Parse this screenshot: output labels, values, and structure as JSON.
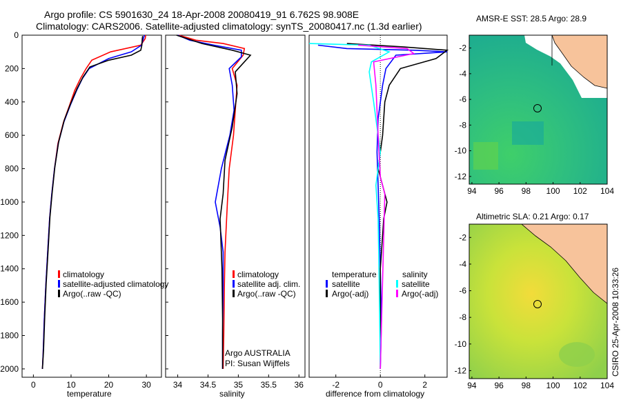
{
  "header": {
    "line1": "Argo profile: CS 5901630_24 18-Apr-2008 20080419_91 6.762S 98.908E",
    "line2": "Climatology: CARS2006. Satellite-adjusted climatology: synTS_20080417.nc (1.3d earlier)"
  },
  "colors": {
    "climatology": "#ff0000",
    "satellite": "#0000ff",
    "argo": "#000000",
    "satellite_salinity": "#00ffff",
    "argo_salinity": "#ff00ff",
    "land": "#f7c39b"
  },
  "charts": {
    "temperature": {
      "xlabel": "temperature",
      "xlim": [
        -3,
        34
      ],
      "xticks": [
        0,
        10,
        20,
        30
      ],
      "ylim": [
        2050,
        0
      ],
      "yticks": [
        0,
        200,
        400,
        600,
        800,
        1000,
        1200,
        1400,
        1600,
        1800,
        2000
      ],
      "legend": [
        "climatology",
        "satellite-adjusted climatology",
        "Argo(..raw -QC)"
      ]
    },
    "salinity": {
      "xlabel": "salinity",
      "xlim": [
        33.8,
        36.1
      ],
      "xticks": [
        "34",
        "34.5",
        "35",
        "35.5",
        "36"
      ],
      "legend": [
        "climatology",
        "satellite adj. clim.",
        "Argo(..raw -QC)"
      ],
      "credit1": "Argo AUSTRALIA",
      "credit2": "PI: Susan Wijffels"
    },
    "difference": {
      "xlabel": "difference from climatology",
      "xlim": [
        -3.2,
        3
      ],
      "xticks": [
        -2,
        0,
        2
      ],
      "legend_temperature_title": "temperature",
      "legend_salinity_title": "salinity",
      "legend_temperature": [
        "satellite",
        "Argo(-adj)"
      ],
      "legend_salinity": [
        "satellite",
        "Argo(-adj)"
      ]
    }
  },
  "maps": {
    "sst": {
      "title": "AMSR-E SST: 28.5 Argo: 28.9",
      "xticks": [
        94,
        96,
        98,
        100,
        102,
        104
      ],
      "yticks": [
        -2,
        -4,
        -6,
        -8,
        -10,
        -12
      ]
    },
    "sla": {
      "title": "Altimetric SLA: 0.21 Argo: 0.17",
      "xticks": [
        94,
        96,
        98,
        100,
        102,
        104
      ],
      "yticks": [
        -2,
        -4,
        -6,
        -8,
        -10,
        -12
      ]
    }
  },
  "side_credit": "CSIRO 25-Apr-2008 10:33:26",
  "chart_data": [
    {
      "type": "line",
      "xlabel": "temperature",
      "ylabel": "",
      "xlim": [
        -3,
        34
      ],
      "ylim": [
        2050,
        0
      ],
      "series": [
        {
          "name": "climatology",
          "x": [
            29.8,
            29.7,
            28.5,
            20.5,
            15.5,
            14.0,
            12.5,
            11.0,
            9.6,
            8.0,
            6.5,
            5.6,
            4.9,
            4.3,
            3.8,
            3.3,
            2.9,
            2.6,
            2.4
          ],
          "y": [
            0,
            20,
            60,
            100,
            150,
            200,
            260,
            330,
            420,
            520,
            650,
            800,
            950,
            1100,
            1300,
            1500,
            1700,
            1900,
            2000
          ]
        },
        {
          "name": "satellite-adjusted climatology",
          "x": [
            29.5,
            29.2,
            28.7,
            26.0,
            20.0,
            14.8,
            13.0,
            11.5,
            9.8,
            8.1,
            6.6,
            5.6,
            4.9,
            4.3,
            3.8,
            3.3,
            2.9,
            2.6,
            2.4
          ],
          "y": [
            0,
            20,
            60,
            100,
            140,
            200,
            260,
            330,
            420,
            520,
            650,
            800,
            950,
            1100,
            1300,
            1500,
            1700,
            1900,
            2000
          ]
        },
        {
          "name": "Argo(..raw -QC)",
          "x": [
            29.0,
            28.9,
            28.8,
            28.5,
            26.0,
            20.0,
            15.0,
            13.2,
            11.6,
            9.9,
            8.2,
            6.7,
            5.7,
            5.0,
            4.4,
            3.9,
            3.4,
            3.0,
            2.7,
            2.4
          ],
          "y": [
            5,
            20,
            60,
            90,
            120,
            150,
            190,
            250,
            320,
            410,
            510,
            640,
            790,
            940,
            1090,
            1290,
            1490,
            1690,
            1890,
            2000
          ]
        }
      ]
    },
    {
      "type": "line",
      "xlabel": "salinity",
      "xlim": [
        33.8,
        36.1
      ],
      "ylim": [
        2050,
        0
      ],
      "series": [
        {
          "name": "climatology",
          "x": [
            34.02,
            34.3,
            34.75,
            35.1,
            35.08,
            34.9,
            34.98,
            34.95,
            34.92,
            34.85,
            34.82,
            34.78,
            34.77,
            34.76,
            34.75
          ],
          "y": [
            0,
            30,
            50,
            80,
            120,
            200,
            300,
            450,
            600,
            800,
            1000,
            1300,
            1500,
            1800,
            2000
          ]
        },
        {
          "name": "satellite adj. clim.",
          "x": [
            34.0,
            34.2,
            34.6,
            35.05,
            35.05,
            34.85,
            34.9,
            34.93,
            34.86,
            34.72,
            34.62,
            34.7,
            34.75,
            34.75,
            34.74,
            34.74
          ],
          "y": [
            0,
            30,
            60,
            90,
            130,
            200,
            300,
            450,
            600,
            800,
            1000,
            1150,
            1300,
            1500,
            1800,
            2000
          ]
        },
        {
          "name": "Argo(..raw -QC)",
          "x": [
            33.98,
            34.4,
            34.9,
            35.2,
            35.1,
            34.95,
            34.98,
            34.9,
            34.78,
            34.75,
            34.7,
            34.73,
            34.74,
            34.74
          ],
          "y": [
            0,
            50,
            90,
            120,
            160,
            220,
            350,
            550,
            750,
            950,
            1100,
            1400,
            1700,
            2000
          ]
        }
      ]
    },
    {
      "type": "line",
      "xlabel": "difference from climatology",
      "xlim": [
        -3.2,
        3
      ],
      "ylim": [
        2050,
        0
      ],
      "series": [
        {
          "name": "temperature satellite",
          "x": [
            -2.8,
            -1.5,
            1.5,
            3.0,
            0.7,
            0.25,
            0.1,
            -0.1,
            -0.15,
            -0.1,
            -0.05,
            0.0,
            0.05,
            0.0
          ],
          "y": [
            60,
            80,
            90,
            100,
            120,
            200,
            300,
            500,
            700,
            900,
            1100,
            1400,
            1700,
            2000
          ]
        },
        {
          "name": "temperature Argo(-adj)",
          "x": [
            -1.5,
            1.0,
            3.0,
            2.5,
            0.9,
            0.4,
            0.2,
            0.1,
            -0.1,
            0.1,
            0.3,
            0.15,
            0.0,
            0.0
          ],
          "y": [
            50,
            70,
            90,
            140,
            200,
            300,
            400,
            600,
            800,
            900,
            1000,
            1100,
            1400,
            2000
          ]
        },
        {
          "name": "salinity satellite",
          "x": [
            -3.2,
            -0.5,
            0.4,
            -0.4,
            -0.5,
            -0.3,
            0.0,
            -0.2,
            -0.1,
            -0.05,
            0.0
          ],
          "y": [
            50,
            60,
            100,
            160,
            220,
            400,
            700,
            900,
            1100,
            1500,
            2000
          ]
        },
        {
          "name": "salinity Argo(-adj)",
          "x": [
            -1.0,
            1.2,
            1.5,
            -0.3,
            -0.2,
            -0.1,
            0.0,
            0.2,
            0.0
          ],
          "y": [
            60,
            80,
            110,
            160,
            300,
            600,
            850,
            950,
            2000
          ]
        }
      ]
    }
  ]
}
